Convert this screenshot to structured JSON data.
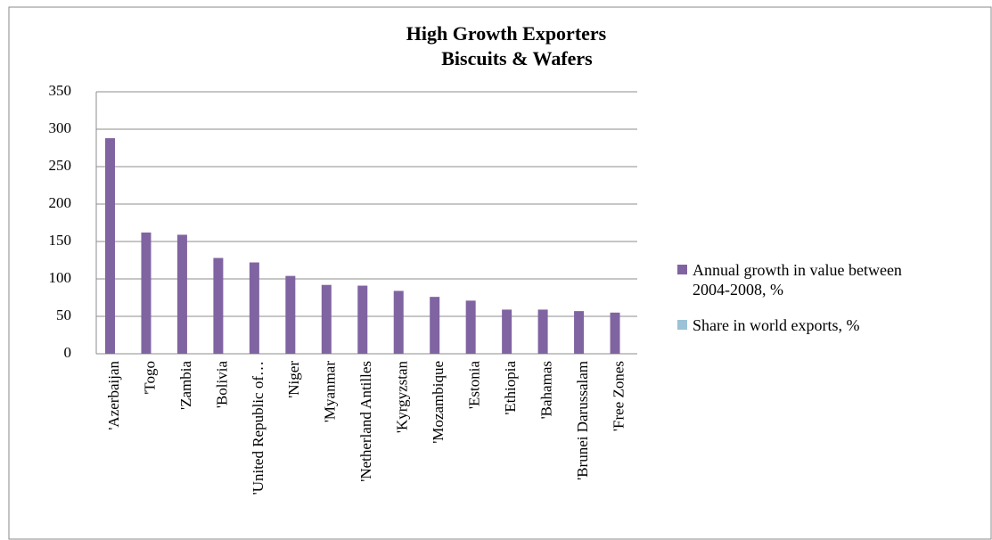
{
  "chart_data": {
    "type": "bar",
    "title": "High Growth Exporters",
    "subtitle": "Biscuits & Wafers",
    "categories": [
      "'Azerbaijan",
      "'Togo",
      "'Zambia",
      "'Bolivia",
      "'United Republic of…",
      "'Niger",
      "'Myanmar",
      "'Netherland Antilles",
      "'Kyrgyzstan",
      "'Mozambique",
      "'Estonia",
      "'Ethiopia",
      "'Bahamas",
      "'Brunei Darussalam",
      "'Free Zones"
    ],
    "series": [
      {
        "name": "Annual growth in value between 2004-2008, %",
        "color": "#8064a2",
        "values": [
          288,
          162,
          159,
          128,
          122,
          104,
          92,
          91,
          84,
          76,
          71,
          59,
          59,
          57,
          55
        ]
      },
      {
        "name": "Share in world exports, %",
        "color": "#9bc2d6",
        "values": [
          0,
          0,
          0,
          0,
          0,
          0,
          0,
          0,
          0,
          0,
          0,
          0,
          0,
          0,
          0
        ]
      }
    ],
    "ylim": [
      0,
      350
    ],
    "yticks": [
      0,
      50,
      100,
      150,
      200,
      250,
      300,
      350
    ],
    "grid": true,
    "legend": "right"
  }
}
